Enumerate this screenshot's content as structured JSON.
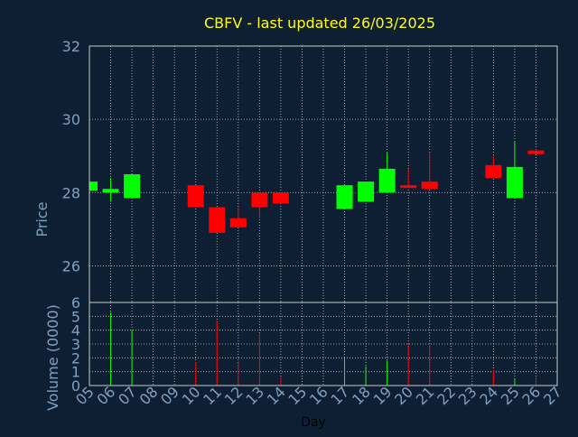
{
  "chart_data": {
    "type": "candlestick",
    "title": "CBFV - last updated 26/03/2025",
    "price_panel": {
      "ylabel": "Price",
      "ylim": [
        25,
        32
      ],
      "yticks": [
        "26",
        "28",
        "30",
        "32"
      ],
      "grid": true
    },
    "volume_panel": {
      "ylabel": "Volume (0000)",
      "ylim": [
        0,
        6
      ],
      "yticks": [
        "0",
        "1",
        "2",
        "3",
        "4",
        "5",
        "6"
      ],
      "grid": true
    },
    "xlabel": "Day",
    "x_ticks": [
      "05",
      "06",
      "07",
      "08",
      "09",
      "10",
      "11",
      "12",
      "13",
      "14",
      "15",
      "16",
      "17",
      "18",
      "19",
      "20",
      "21",
      "22",
      "23",
      "24",
      "25",
      "26",
      "27"
    ],
    "candles": [
      {
        "day": "05",
        "open": 28.05,
        "close": 28.3,
        "high": 28.3,
        "low": 28.05,
        "volume": 0.0
      },
      {
        "day": "06",
        "open": 28.0,
        "close": 28.1,
        "high": 28.4,
        "low": 27.75,
        "volume": 5.3
      },
      {
        "day": "07",
        "open": 27.85,
        "close": 28.5,
        "high": 28.5,
        "low": 27.85,
        "volume": 4.0
      },
      {
        "day": "10",
        "open": 28.2,
        "close": 27.6,
        "high": 28.2,
        "low": 27.6,
        "volume": 1.7
      },
      {
        "day": "11",
        "open": 27.6,
        "close": 26.9,
        "high": 27.6,
        "low": 26.9,
        "volume": 4.7
      },
      {
        "day": "12",
        "open": 27.3,
        "close": 27.05,
        "high": 27.6,
        "low": 27.05,
        "volume": 1.6
      },
      {
        "day": "13",
        "open": 28.0,
        "close": 27.6,
        "high": 28.0,
        "low": 27.3,
        "volume": 3.8
      },
      {
        "day": "14",
        "open": 28.0,
        "close": 27.7,
        "high": 28.0,
        "low": 27.7,
        "volume": 0.6
      },
      {
        "day": "17",
        "open": 27.55,
        "close": 28.2,
        "high": 28.2,
        "low": 27.55,
        "volume": 2.0
      },
      {
        "day": "18",
        "open": 27.75,
        "close": 28.3,
        "high": 28.3,
        "low": 27.75,
        "volume": 1.4
      },
      {
        "day": "19",
        "open": 28.0,
        "close": 28.65,
        "high": 29.1,
        "low": 28.0,
        "volume": 1.8
      },
      {
        "day": "20",
        "open": 28.2,
        "close": 28.15,
        "high": 28.65,
        "low": 28.15,
        "volume": 3.0
      },
      {
        "day": "21",
        "open": 28.3,
        "close": 28.1,
        "high": 29.1,
        "low": 28.1,
        "volume": 2.9
      },
      {
        "day": "24",
        "open": 28.75,
        "close": 28.4,
        "high": 29.0,
        "low": 28.4,
        "volume": 1.1
      },
      {
        "day": "25",
        "open": 27.85,
        "close": 28.7,
        "high": 29.4,
        "low": 27.85,
        "volume": 0.5
      },
      {
        "day": "26",
        "open": 29.15,
        "close": 29.05,
        "high": 29.2,
        "low": 29.05,
        "volume": 0.6
      }
    ],
    "colors": {
      "background": "#0f1f33",
      "up": "#00ff00",
      "down": "#ff0000",
      "title": "#ffff00",
      "axis_text": "#7fa0c0",
      "grid": "#c8c8c8",
      "xlabel": "#000000"
    }
  }
}
